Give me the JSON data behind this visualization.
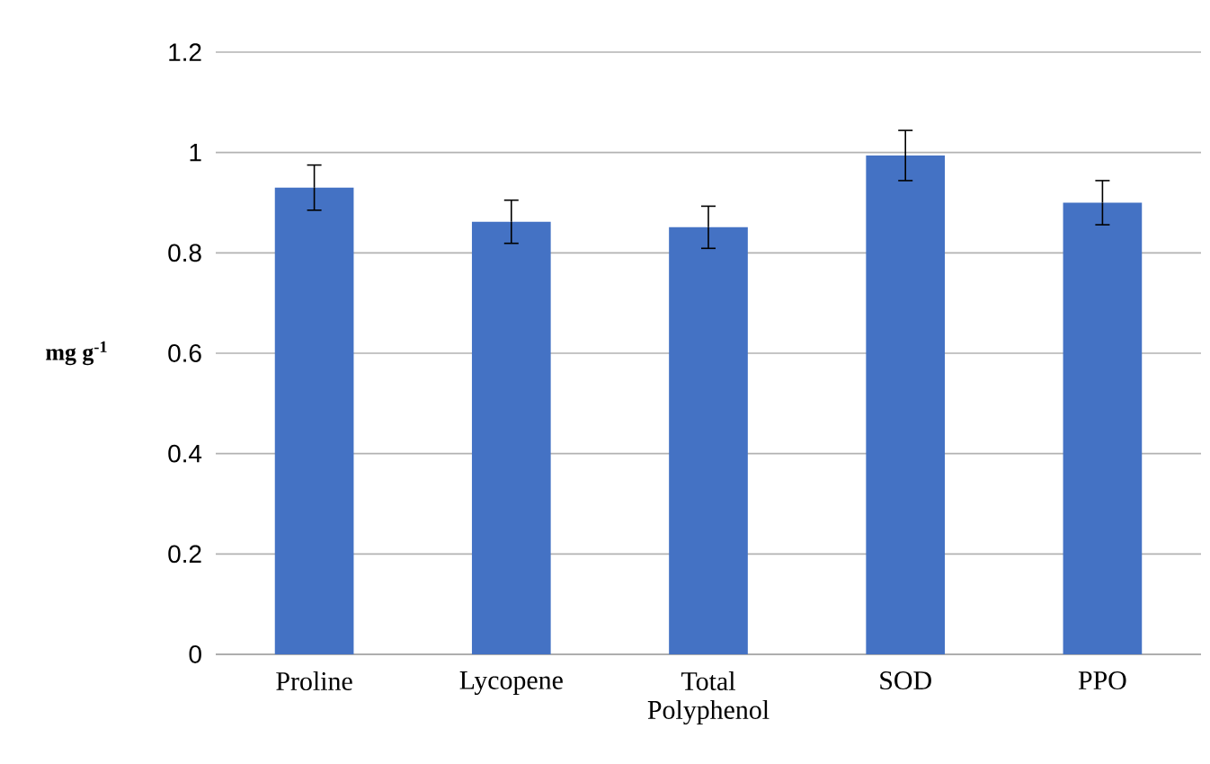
{
  "chart_data": {
    "type": "bar",
    "ylabel": "mg g$^{-1}$",
    "categories": [
      "Proline",
      "Lycopene",
      "Total Polyphenol",
      "SOD",
      "PPO"
    ],
    "values": [
      0.93,
      0.862,
      0.851,
      0.994,
      0.9
    ],
    "errors": [
      0.045,
      0.043,
      0.042,
      0.05,
      0.044
    ],
    "color": "#4472c4",
    "ylim": [
      0,
      1.2
    ],
    "yticks": [
      0,
      0.2,
      0.4,
      0.6,
      0.8,
      1,
      1.2
    ],
    "grid": "y"
  }
}
